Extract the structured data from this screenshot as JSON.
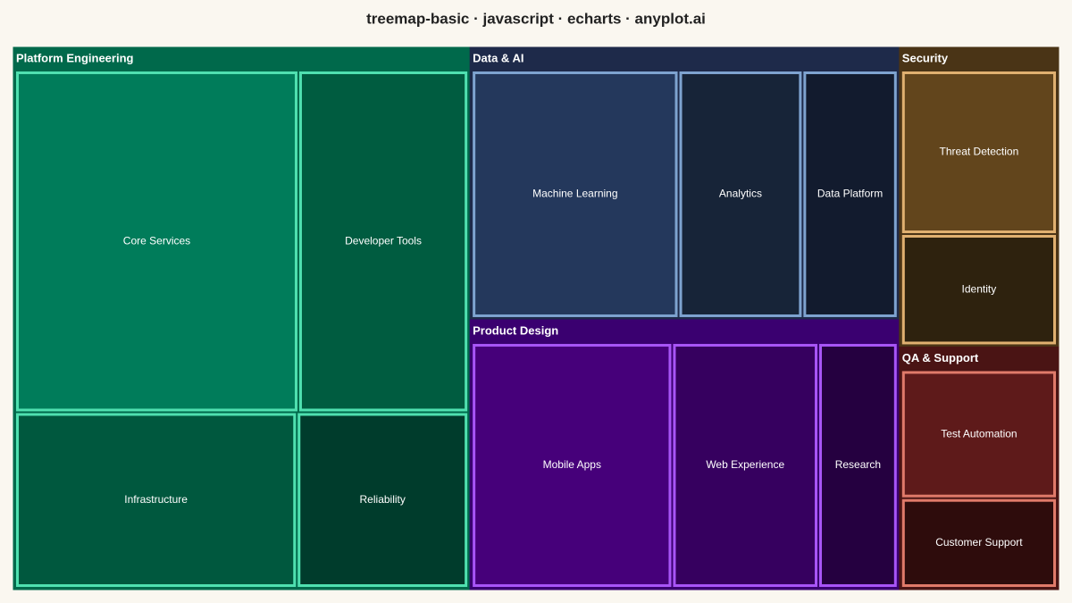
{
  "chart_data": {
    "type": "treemap",
    "title": "treemap-basic · javascript · echarts · anyplot.ai",
    "series": [
      {
        "name": "Platform Engineering",
        "color": "#00694b",
        "border_color": "#4fe0b0",
        "children": [
          {
            "name": "Core Services",
            "value": 90,
            "color": "#007c5a"
          },
          {
            "name": "Developer Tools",
            "value": 54,
            "color": "#005c40"
          },
          {
            "name": "Infrastructure",
            "value": 46,
            "color": "#00583e"
          },
          {
            "name": "Reliability",
            "value": 28,
            "color": "#003c2c"
          }
        ]
      },
      {
        "name": "Data & AI",
        "color": "#1e2a4a",
        "border_color": "#7ea3d0",
        "children": [
          {
            "name": "Machine Learning",
            "value": 50,
            "color": "#24385c"
          },
          {
            "name": "Analytics",
            "value": 30,
            "color": "#172438"
          },
          {
            "name": "Data Platform",
            "value": 23,
            "color": "#121b2e"
          }
        ]
      },
      {
        "name": "Product Design",
        "color": "#3a0070",
        "border_color": "#a855f7",
        "children": [
          {
            "name": "Mobile Apps",
            "value": 48,
            "color": "#46007a"
          },
          {
            "name": "Web Experience",
            "value": 35,
            "color": "#36005f"
          },
          {
            "name": "Research",
            "value": 19,
            "color": "#250040"
          }
        ]
      },
      {
        "name": "Security",
        "color": "#4a3416",
        "border_color": "#e0b070",
        "children": [
          {
            "name": "Threat Detection",
            "value": 25,
            "color": "#62451c"
          },
          {
            "name": "Identity",
            "value": 17,
            "color": "#2e220e"
          }
        ]
      },
      {
        "name": "QA & Support",
        "color": "#4a1414",
        "border_color": "#e07a6a",
        "children": [
          {
            "name": "Test Automation",
            "value": 20,
            "color": "#5e1a1a"
          },
          {
            "name": "Customer Support",
            "value": 14,
            "color": "#2e0c0c"
          }
        ]
      }
    ]
  }
}
